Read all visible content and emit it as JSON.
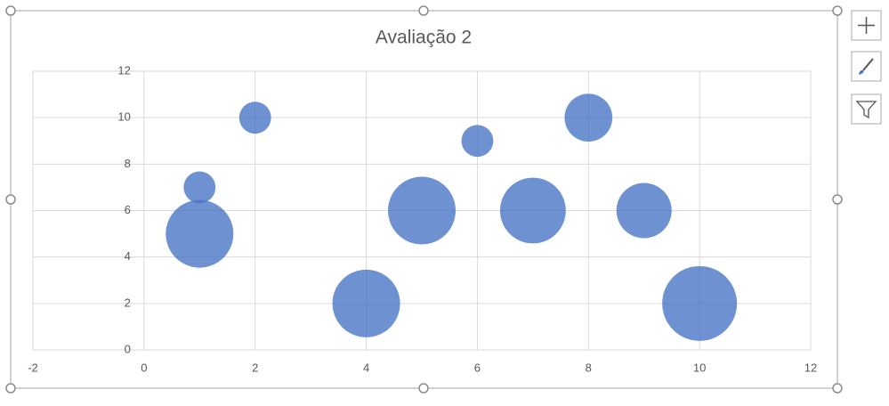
{
  "chart_data": {
    "type": "bubble",
    "title": "Avaliação 2",
    "series": [
      {
        "color": "#4472c4",
        "x": [
          1,
          1,
          2,
          4,
          5,
          6,
          7,
          8,
          9,
          10
        ],
        "values": [
          5,
          7,
          10,
          2,
          6,
          9,
          6,
          10,
          6,
          2
        ],
        "sizes": [
          9,
          2,
          2,
          9,
          9,
          2,
          8.5,
          4.5,
          6,
          11
        ]
      }
    ],
    "xlim": [
      -2,
      12
    ],
    "xticks": [
      -2,
      0,
      2,
      4,
      6,
      8,
      10,
      12
    ],
    "ylim": [
      0,
      12
    ],
    "yticks": [
      0,
      2,
      4,
      6,
      8,
      10,
      12
    ],
    "grid": true
  }
}
